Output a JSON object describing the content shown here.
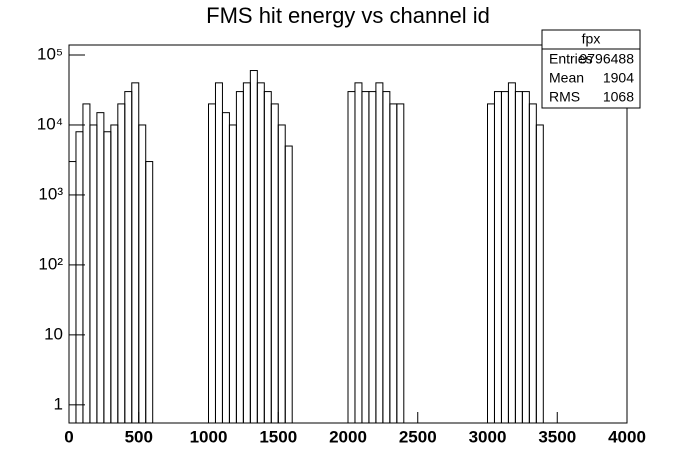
{
  "chart_data": {
    "type": "histogram",
    "title": "FMS hit energy vs channel id",
    "bins": [
      0,
      50,
      100,
      150,
      200,
      250,
      300,
      350,
      400,
      450,
      500,
      550,
      600,
      650,
      700,
      750,
      800,
      850,
      900,
      950,
      1000,
      1050,
      1100,
      1150,
      1200,
      1250,
      1300,
      1350,
      1400,
      1450,
      1500,
      1550,
      1600,
      1650,
      1700,
      1750,
      1800,
      1850,
      1900,
      1950,
      2000,
      2050,
      2100,
      2150,
      2200,
      2250,
      2300,
      2350,
      2400,
      2450,
      2500,
      2550,
      2600,
      2650,
      2700,
      2750,
      2800,
      2850,
      2900,
      2950,
      3000,
      3050,
      3100,
      3150,
      3200,
      3250,
      3300,
      3350,
      3400,
      3450,
      3500,
      3550,
      3600,
      3650,
      3700,
      3750,
      3800,
      3850,
      3900,
      3950,
      4000
    ],
    "values": [
      3000,
      8000,
      20000,
      10000,
      15000,
      8000,
      10000,
      20000,
      30000,
      40000,
      10000,
      3000,
      0,
      0,
      0,
      0,
      0,
      0,
      0,
      0,
      20000,
      40000,
      15000,
      10000,
      30000,
      40000,
      60000,
      40000,
      30000,
      20000,
      10000,
      5000,
      0,
      0,
      0,
      0,
      0,
      0,
      0,
      0,
      30000,
      40000,
      30000,
      30000,
      40000,
      30000,
      20000,
      20000,
      0,
      0,
      0,
      0,
      0,
      0,
      0,
      0,
      0,
      0,
      0,
      0,
      20000,
      30000,
      30000,
      40000,
      30000,
      30000,
      20000,
      10000,
      0,
      0,
      0,
      0,
      0,
      0,
      0,
      0,
      0,
      0,
      0,
      0
    ],
    "color": "#000000",
    "log_y": true,
    "xlim": [
      0,
      4000
    ],
    "xticks": [
      0,
      500,
      1000,
      1500,
      2000,
      2500,
      3000,
      3500,
      4000
    ],
    "ylim": [
      0.55,
      139000
    ],
    "yticks": [
      1,
      10,
      {
        "value": 100,
        "label": "10²"
      },
      {
        "value": 1000,
        "label": "10³"
      },
      {
        "value": 10000,
        "label": "10⁴"
      },
      {
        "value": 100000,
        "label": "10⁵"
      }
    ],
    "stats": {
      "title": "fpx",
      "rows": [
        [
          "Entries",
          "9796488"
        ],
        [
          "Mean",
          "1904"
        ],
        [
          "RMS",
          "1068"
        ]
      ]
    }
  }
}
